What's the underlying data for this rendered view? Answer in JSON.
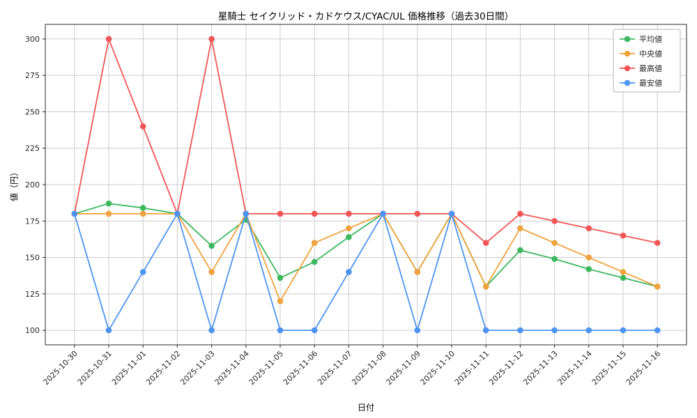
{
  "chart_data": {
    "type": "line",
    "title": "星騎士 セイクリッド・カドケウス/CYAC/UL 価格推移（過去30日間）",
    "xlabel": "日付",
    "ylabel": "値（円）",
    "categories": [
      "2025-10-30",
      "2025-10-31",
      "2025-11-01",
      "2025-11-02",
      "2025-11-03",
      "2025-11-04",
      "2025-11-05",
      "2025-11-06",
      "2025-11-07",
      "2025-11-08",
      "2025-11-09",
      "2025-11-10",
      "2025-11-11",
      "2025-11-12",
      "2025-11-13",
      "2025-11-14",
      "2025-11-15",
      "2025-11-16"
    ],
    "series": [
      {
        "id": "average",
        "name": "平均値",
        "color": "#3cb85f",
        "values": [
          180,
          187,
          184,
          180,
          158,
          176,
          136,
          147,
          164,
          180,
          140,
          180,
          130,
          155,
          149,
          142,
          136,
          130
        ]
      },
      {
        "id": "median",
        "name": "中央値",
        "color": "#f0a33c",
        "values": [
          180,
          180,
          180,
          180,
          140,
          180,
          120,
          160,
          170,
          180,
          140,
          180,
          130,
          170,
          160,
          150,
          140,
          130
        ]
      },
      {
        "id": "highest",
        "name": "最高値",
        "color": "#f25555",
        "values": [
          180,
          300,
          240,
          180,
          300,
          180,
          180,
          180,
          180,
          180,
          180,
          180,
          160,
          180,
          175,
          170,
          165,
          160
        ]
      },
      {
        "id": "lowest",
        "name": "最安値",
        "color": "#4d94f2",
        "values": [
          180,
          100,
          140,
          180,
          100,
          180,
          100,
          100,
          140,
          180,
          100,
          180,
          100,
          100,
          100,
          100,
          100,
          100
        ]
      }
    ],
    "yticks": [
      100,
      125,
      150,
      175,
      200,
      225,
      250,
      275,
      300
    ],
    "ylim": [
      90,
      310
    ],
    "grid": true,
    "legend_position": "top-right",
    "colors": {
      "grid": "#cccccc",
      "spine": "#262626",
      "legend_border": "#b0b0b0",
      "background": "#ffffff"
    }
  }
}
